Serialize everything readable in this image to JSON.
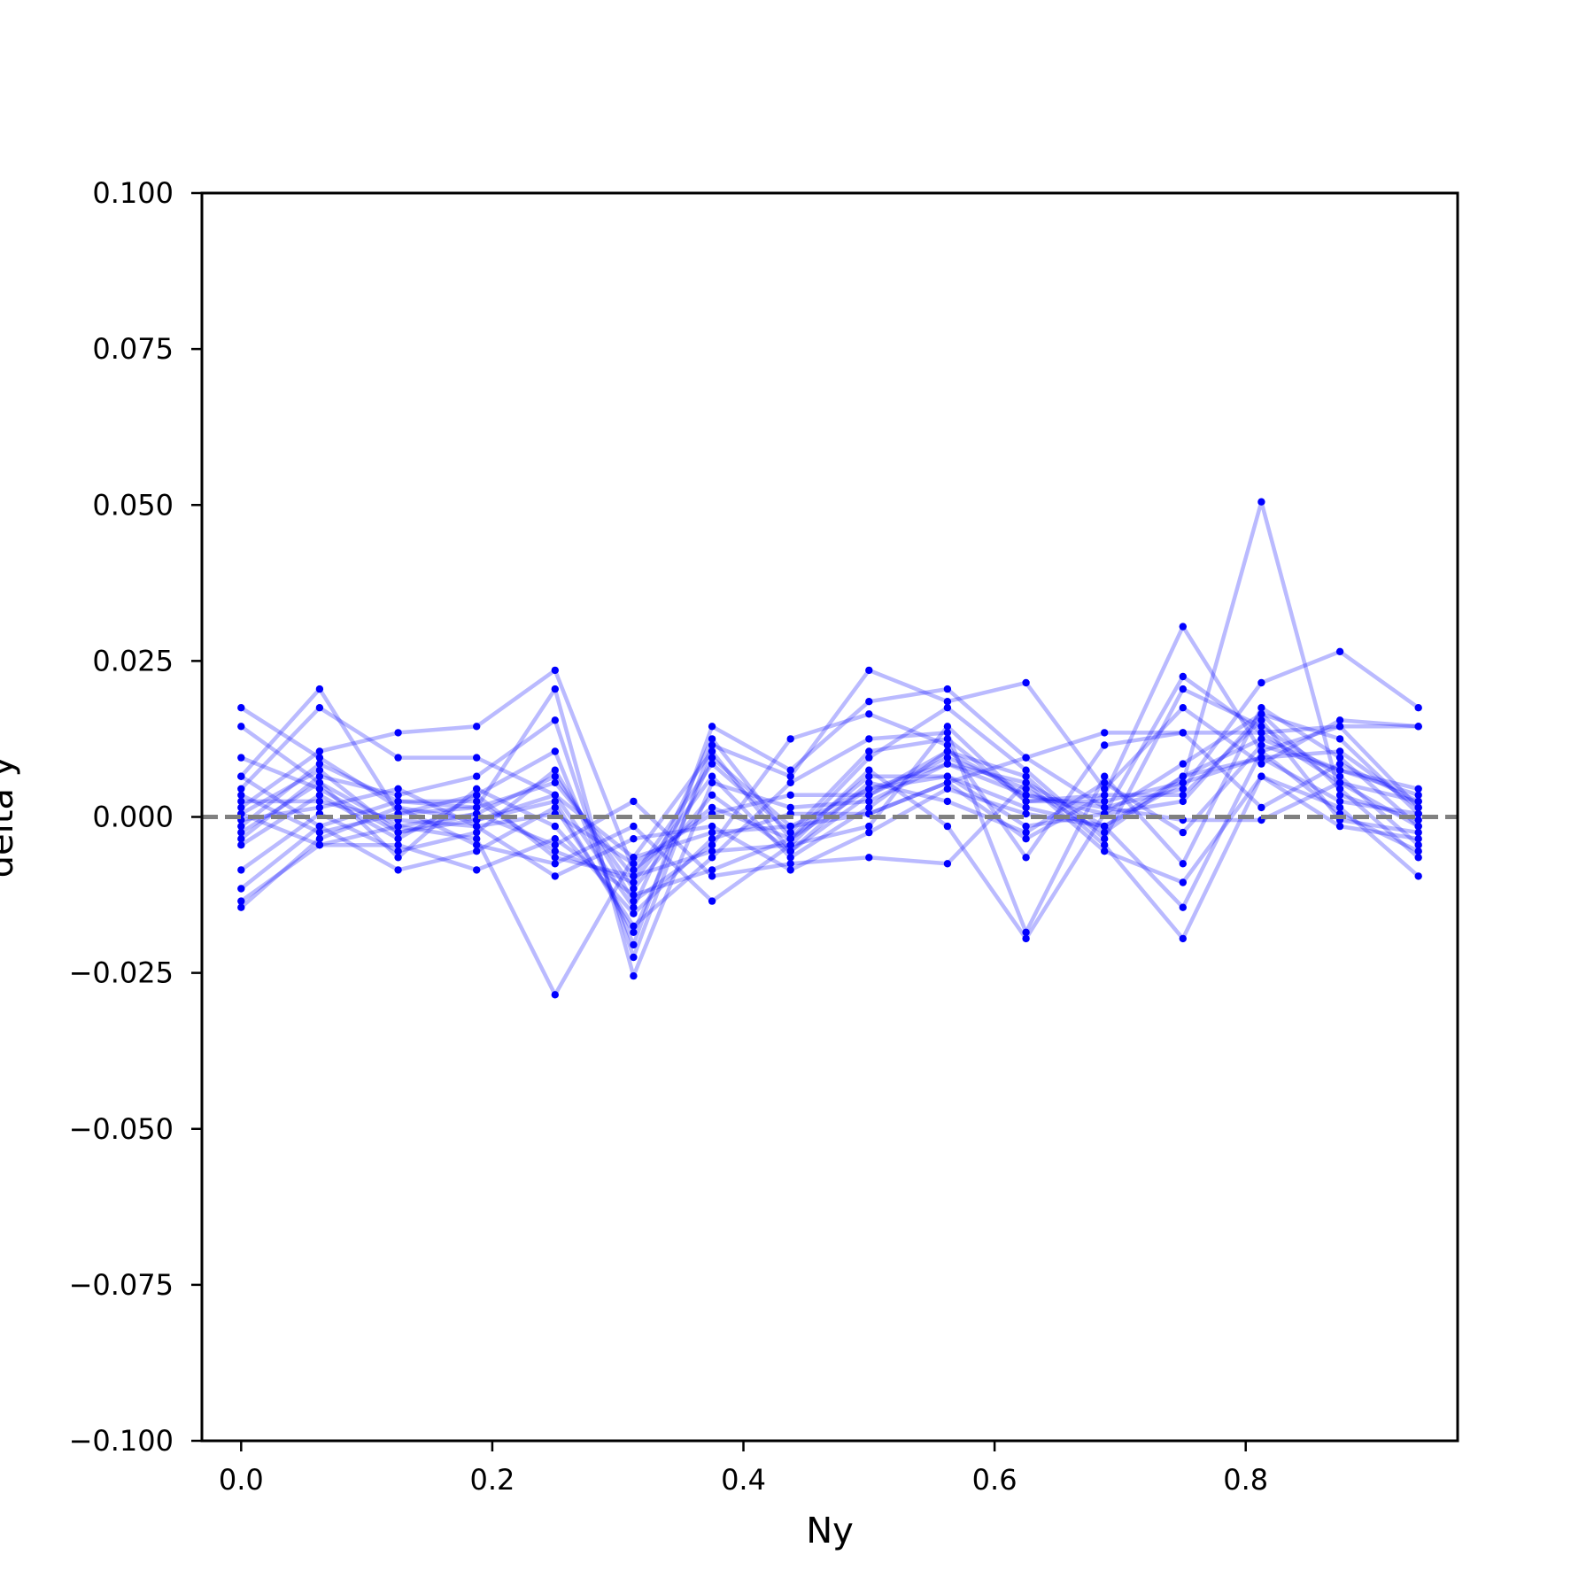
{
  "chart_data": {
    "type": "line",
    "title": "",
    "xlabel": "Ny",
    "ylabel": "delta y",
    "xlim": [
      -0.03125,
      0.96875
    ],
    "ylim": [
      -0.1,
      0.1
    ],
    "x_ticks": [
      "0.0",
      "0.2",
      "0.4",
      "0.6",
      "0.8"
    ],
    "x_tick_values": [
      0.0,
      0.2,
      0.4,
      0.6,
      0.8
    ],
    "y_ticks": [
      "−0.100",
      "−0.075",
      "−0.050",
      "−0.025",
      "0.000",
      "0.025",
      "0.050",
      "0.075",
      "0.100"
    ],
    "y_tick_values": [
      -0.1,
      -0.075,
      -0.05,
      -0.025,
      0.0,
      0.025,
      0.05,
      0.075,
      0.1
    ],
    "reference_line": {
      "y": 0.0,
      "style": "dashed",
      "color": "#808080"
    },
    "line_color": "#0000ff",
    "marker_color": "#0000ff",
    "grid": false,
    "x": [
      0.0,
      0.0625,
      0.125,
      0.1875,
      0.25,
      0.3125,
      0.375,
      0.4375,
      0.5,
      0.5625,
      0.625,
      0.6875,
      0.75,
      0.8125,
      0.875,
      0.9375
    ],
    "series": [
      {
        "values": [
          0.0175,
          0.0095,
          0.0015,
          -0.0005,
          0.0025,
          -0.0185,
          0.0095,
          -0.0015,
          0.0045,
          0.0085,
          0.0055,
          -0.0015,
          0.0065,
          0.0125,
          0.0075,
          0.0035
        ]
      },
      {
        "values": [
          0.0145,
          0.0055,
          -0.0015,
          0.0005,
          0.0065,
          -0.0115,
          0.0035,
          -0.0055,
          0.0035,
          0.0105,
          0.0035,
          0.0005,
          0.0225,
          0.0135,
          0.0055,
          -0.0015
        ]
      },
      {
        "values": [
          0.0065,
          0.0205,
          0.0005,
          0.0015,
          0.0055,
          -0.0095,
          0.0085,
          -0.0025,
          0.0105,
          0.0125,
          0.0025,
          0.0025,
          0.0055,
          0.0095,
          0.0025,
          0.0005
        ]
      },
      {
        "values": [
          0.0045,
          0.0175,
          0.0095,
          0.0095,
          0.0035,
          -0.0065,
          -0.0025,
          -0.0015,
          0.0005,
          0.0055,
          -0.0035,
          0.0035,
          0.0305,
          0.0105,
          0.0145,
          0.0015
        ]
      },
      {
        "values": [
          0.0015,
          0.0105,
          0.0135,
          0.0145,
          0.0235,
          -0.0085,
          0.0015,
          -0.0035,
          0.0045,
          0.0065,
          0.0015,
          -0.0015,
          0.0055,
          0.0505,
          0.0035,
          -0.0005
        ]
      },
      {
        "values": [
          -0.0015,
          0.0085,
          0.0025,
          0.0015,
          0.0205,
          -0.0255,
          0.0055,
          0.0015,
          0.0025,
          0.0085,
          0.0035,
          0.0015,
          0.0045,
          0.0215,
          0.0265,
          0.0175
        ]
      },
      {
        "values": [
          -0.0035,
          0.0065,
          0.0035,
          0.0065,
          0.0155,
          -0.0225,
          0.0115,
          0.0065,
          0.0235,
          0.0185,
          0.0215,
          0.0045,
          0.0175,
          0.0085,
          0.0155,
          0.0145
        ]
      },
      {
        "values": [
          -0.0045,
          0.0035,
          -0.0035,
          0.0035,
          0.0105,
          -0.0205,
          0.0145,
          0.0075,
          0.0185,
          0.0205,
          0.0095,
          0.0135,
          0.0135,
          0.0135,
          0.0145,
          0.0145
        ]
      },
      {
        "values": [
          -0.0085,
          0.0005,
          -0.0055,
          -0.0025,
          0.0075,
          -0.0135,
          -0.0045,
          0.0125,
          0.0165,
          0.0115,
          -0.0065,
          0.0115,
          0.0135,
          0.0015,
          0.0085,
          0.0025
        ]
      },
      {
        "values": [
          -0.0115,
          -0.0015,
          -0.0085,
          -0.0055,
          0.0015,
          -0.0175,
          -0.0065,
          0.0055,
          0.0125,
          0.0135,
          -0.0185,
          0.0065,
          -0.0075,
          0.0175,
          0.0095,
          -0.0015
        ]
      },
      {
        "values": [
          -0.0135,
          -0.0045,
          -0.0045,
          -0.0085,
          -0.0035,
          -0.0125,
          -0.0085,
          -0.0035,
          0.0095,
          0.0175,
          0.0075,
          -0.0035,
          0.0205,
          0.0145,
          0.0065,
          -0.0045
        ]
      },
      {
        "values": [
          -0.0145,
          -0.0035,
          0.0015,
          -0.0045,
          -0.0075,
          -0.0015,
          -0.0135,
          -0.0045,
          0.0075,
          -0.0015,
          -0.0195,
          0.0005,
          0.0025,
          0.0165,
          0.0045,
          -0.0065
        ]
      },
      {
        "values": [
          0.0095,
          0.0045,
          -0.0025,
          0.0005,
          -0.0045,
          0.0025,
          -0.0095,
          -0.0075,
          -0.0065,
          -0.0075,
          0.0055,
          -0.0055,
          -0.0105,
          0.0065,
          0.0015,
          -0.0095
        ]
      },
      {
        "values": [
          0.0025,
          0.0025,
          -0.0005,
          -0.0015,
          -0.0095,
          -0.0035,
          -0.0015,
          -0.0085,
          -0.0025,
          0.0045,
          0.0005,
          -0.0015,
          -0.0145,
          0.0105,
          0.0005,
          -0.0055
        ]
      },
      {
        "values": [
          0.0065,
          -0.0015,
          0.0025,
          0.0025,
          -0.0055,
          -0.0105,
          0.0065,
          -0.0065,
          0.0015,
          0.0105,
          0.0065,
          -0.0045,
          -0.0195,
          0.0065,
          -0.0015,
          -0.0035
        ]
      },
      {
        "values": [
          0.0005,
          -0.0045,
          -0.0015,
          -0.0035,
          -0.0285,
          -0.0065,
          0.0105,
          -0.0055,
          0.0055,
          0.0025,
          -0.0025,
          0.0055,
          -0.0025,
          0.0115,
          0.0075,
          0.0045
        ]
      },
      {
        "values": [
          -0.0025,
          0.0055,
          -0.0065,
          0.0045,
          -0.0015,
          -0.0155,
          -0.0035,
          0.0005,
          0.0005,
          0.0055,
          0.0095,
          0.0015,
          -0.0005,
          -0.0005,
          0.0055,
          0.0025
        ]
      },
      {
        "values": [
          -0.0005,
          0.0015,
          0.0045,
          -0.0015,
          0.0005,
          -0.0075,
          0.0005,
          0.0035,
          0.0035,
          0.0095,
          0.0045,
          -0.0025,
          0.0065,
          0.0095,
          0.0105,
          0.0015
        ]
      },
      {
        "values": [
          0.0035,
          -0.0025,
          0.0005,
          0.0035,
          -0.0065,
          -0.0095,
          -0.0055,
          -0.0045,
          -0.0015,
          0.0145,
          0.0025,
          0.0035,
          0.0035,
          0.0155,
          -0.0005,
          -0.0025
        ]
      },
      {
        "values": [
          0.0005,
          0.0075,
          -0.0025,
          -0.0005,
          0.0035,
          -0.0145,
          0.0125,
          -0.0035,
          0.0065,
          0.0065,
          -0.0015,
          0.0005,
          0.0085,
          0.0165,
          0.0125,
          0.0005
        ]
      }
    ]
  }
}
